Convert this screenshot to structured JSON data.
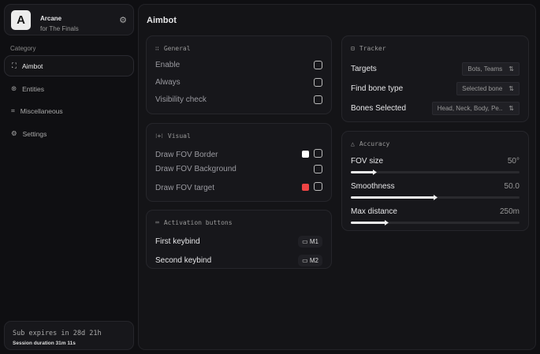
{
  "brand": {
    "name": "Arcane",
    "subtitle": "for The Finals",
    "logo_letter": "A"
  },
  "sidebar": {
    "category_label": "Category",
    "items": [
      {
        "label": "Aimbot",
        "icon": "crosshair-icon",
        "active": true
      },
      {
        "label": "Entities",
        "icon": "entities-icon"
      },
      {
        "label": "Miscellaneous",
        "icon": "misc-icon"
      },
      {
        "label": "Settings",
        "icon": "gear-icon"
      }
    ]
  },
  "footer": {
    "sub": "Sub expires in 28d 21h",
    "session": "Session duration 31m 11s"
  },
  "page_title": "Aimbot",
  "general": {
    "title": "General",
    "rows": [
      {
        "label": "Enable"
      },
      {
        "label": "Always"
      },
      {
        "label": "Visibility check"
      }
    ]
  },
  "visual": {
    "title": "Visual",
    "rows": [
      {
        "label": "Draw FOV Border",
        "color": "#ffffff"
      },
      {
        "label": "Draw FOV Background"
      },
      {
        "label": "Draw FOV target",
        "color": "#ef4444"
      }
    ]
  },
  "activation": {
    "title": "Activation buttons",
    "rows": [
      {
        "label": "First keybind",
        "key": "M1"
      },
      {
        "label": "Second keybind",
        "key": "M2"
      }
    ]
  },
  "tracker": {
    "title": "Tracker",
    "rows": [
      {
        "label": "Targets",
        "value": "Bots, Teams"
      },
      {
        "label": "Find bone type",
        "value": "Selected bone"
      },
      {
        "label": "Bones Selected",
        "value": "Head, Neck, Body, Pe.."
      }
    ]
  },
  "accuracy": {
    "title": "Accuracy",
    "sliders": [
      {
        "label": "FOV size",
        "value": "50°",
        "fraction": 0.14
      },
      {
        "label": "Smoothness",
        "value": "50.0",
        "fraction": 0.5
      },
      {
        "label": "Max distance",
        "value": "250m",
        "fraction": 0.21
      }
    ]
  }
}
